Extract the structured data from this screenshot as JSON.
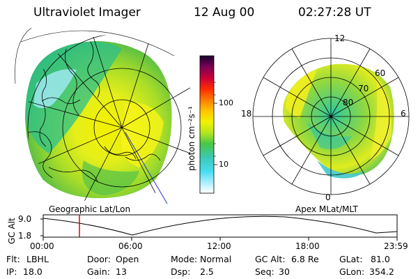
{
  "header": {
    "instrument": "Ultraviolet Imager",
    "date": "12 Aug 00",
    "time": "02:27:28 UT"
  },
  "colorbar": {
    "label": "photon cm⁻²s⁻¹",
    "ticks": [
      "100",
      "10"
    ],
    "scale": "log",
    "colors": [
      "#1a0030",
      "#7a0055",
      "#c8003a",
      "#ff2a00",
      "#ff7a00",
      "#ffc400",
      "#f2f200",
      "#b4e61e",
      "#46c846",
      "#3cc8b4",
      "#46dcf0",
      "#b4f0ff",
      "#ffffff"
    ]
  },
  "left_panel": {
    "label": "Geographic Lat/Lon"
  },
  "right_panel": {
    "label": "Apex MLat/MLT",
    "mlt_labels": {
      "top": "12",
      "left": "18",
      "right": "6",
      "bottom": "0"
    },
    "mlat_labels": [
      "60",
      "70",
      "80"
    ]
  },
  "altitude_plot": {
    "ylabel": "GC Alt",
    "yticks": [
      "9.0",
      "1.8"
    ],
    "xticks": [
      "00:00",
      "06:00",
      "12:00",
      "18:00",
      "23:59"
    ],
    "marker_time_hours": 2.458
  },
  "info": {
    "row1": [
      {
        "label": "Flt:",
        "value": "LBHL"
      },
      {
        "label": "Door:",
        "value": "Open"
      },
      {
        "label": "Mode:",
        "value": "Normal"
      },
      {
        "label": "GC Alt:",
        "value": "6.8 Re"
      },
      {
        "label": "GLat:",
        "value": "81.0"
      }
    ],
    "row2": [
      {
        "label": "IP:",
        "value": "18.0"
      },
      {
        "label": "Gain:",
        "value": "13"
      },
      {
        "label": "Dsp:",
        "value": "2.5"
      },
      {
        "label": "Seq:",
        "value": "30"
      },
      {
        "label": "GLon:",
        "value": "354.2"
      }
    ]
  }
}
